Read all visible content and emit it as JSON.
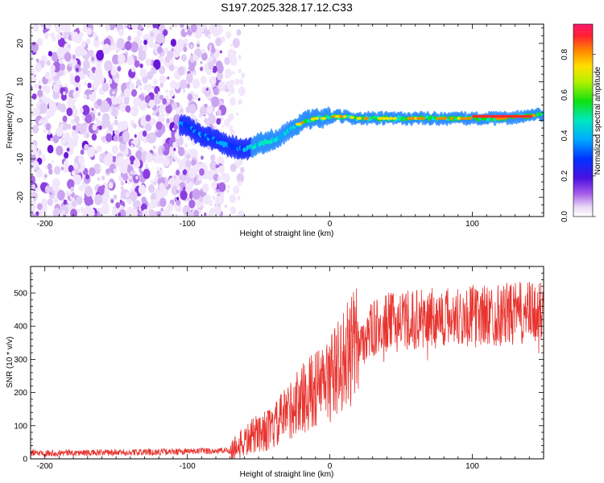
{
  "title": "S197.2025.328.17.12.C33",
  "chart_data": [
    {
      "type": "heatmap",
      "name": "spectrogram",
      "xlabel": "Height of straight line (km)",
      "ylabel": "Frequency (Hz)",
      "xlim": [
        -210,
        150
      ],
      "ylim": [
        -25,
        25
      ],
      "xticks": [
        -200,
        -100,
        0,
        100
      ],
      "yticks": [
        -20,
        -10,
        0,
        10,
        20
      ],
      "ridge": {
        "x": [
          -105,
          -98,
          -92,
          -85,
          -78,
          -72,
          -66,
          -60,
          -55,
          -50,
          -44,
          -38,
          -34,
          -28,
          -22,
          -16,
          -10,
          -4,
          0,
          10,
          20,
          40,
          60,
          80,
          100,
          120,
          135,
          150
        ],
        "y": [
          -1,
          -2,
          -3.5,
          -4.5,
          -5.5,
          -6.5,
          -7,
          -7.5,
          -7,
          -6,
          -5.5,
          -5,
          -4,
          -2.5,
          -1,
          0,
          0.5,
          0.5,
          1,
          1,
          0.5,
          0.5,
          0.5,
          0.5,
          0.5,
          0.5,
          1,
          1.5
        ]
      },
      "colorbar": {
        "label": "Normalized spectral amplitude",
        "range": [
          0.0,
          0.95
        ],
        "ticks": [
          "0.0",
          "0.2",
          "0.4",
          "0.6",
          "0.8"
        ]
      }
    },
    {
      "type": "line",
      "name": "snr",
      "xlabel": "Height of straight line (km)",
      "ylabel": "SNR (10 * v/v)",
      "xlim": [
        -210,
        150
      ],
      "ylim": [
        0,
        580
      ],
      "xticks": [
        -200,
        -100,
        0,
        100
      ],
      "yticks": [
        0,
        100,
        200,
        300,
        400,
        500
      ],
      "color": "#e8342f",
      "envelope": {
        "x": [
          -210,
          -160,
          -100,
          -70,
          -60,
          -50,
          -40,
          -30,
          -20,
          -10,
          0,
          10,
          20,
          30,
          40,
          60,
          80,
          100,
          120,
          150
        ],
        "y": [
          18,
          18,
          22,
          25,
          50,
          80,
          90,
          140,
          180,
          210,
          240,
          300,
          350,
          390,
          410,
          420,
          425,
          430,
          435,
          440
        ]
      }
    }
  ]
}
